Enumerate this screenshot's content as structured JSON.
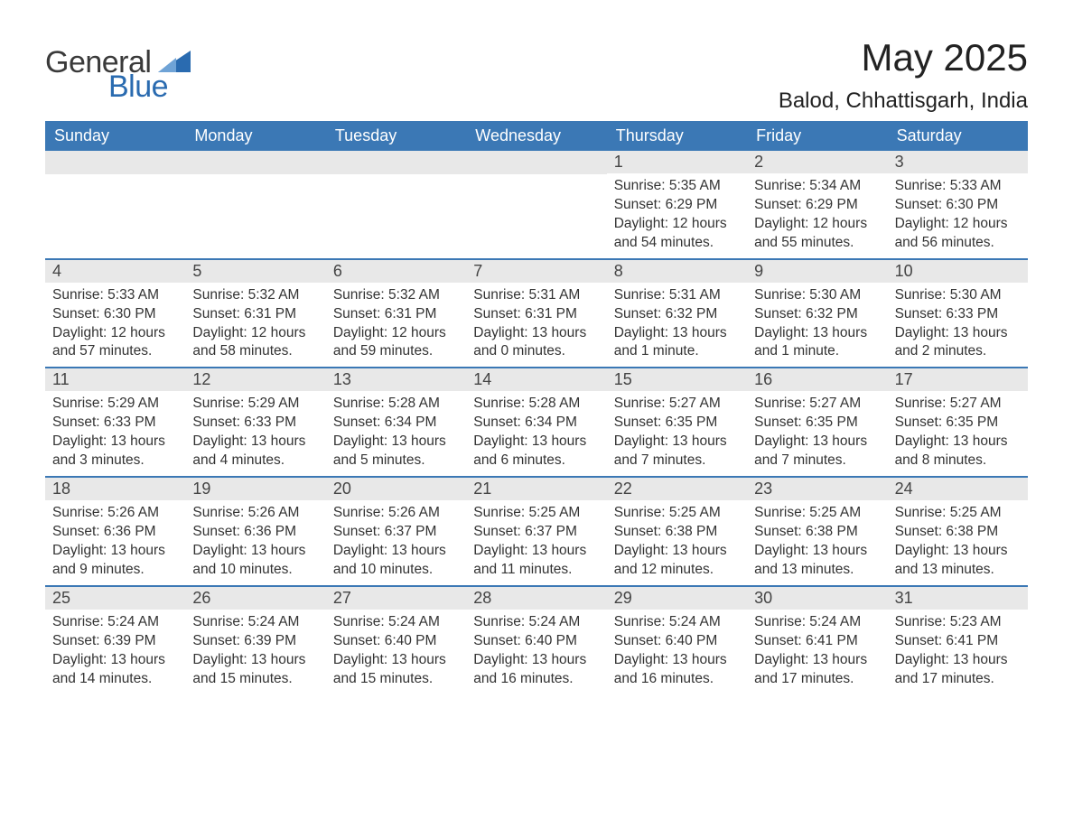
{
  "brand": {
    "general": "General",
    "blue": "Blue"
  },
  "title": "May 2025",
  "location": "Balod, Chhattisgarh, India",
  "colors": {
    "header_bg": "#3b78b5",
    "header_text": "#ffffff",
    "daynum_bg": "#e8e8e8",
    "row_border": "#3b78b5",
    "page_bg": "#ffffff",
    "text": "#333333",
    "logo_blue": "#2a6bb0",
    "logo_gray": "#3a3a3a"
  },
  "days_of_week": [
    "Sunday",
    "Monday",
    "Tuesday",
    "Wednesday",
    "Thursday",
    "Friday",
    "Saturday"
  ],
  "weeks": [
    [
      {
        "blank": true
      },
      {
        "blank": true
      },
      {
        "blank": true
      },
      {
        "blank": true
      },
      {
        "num": "1",
        "sunrise": "Sunrise: 5:35 AM",
        "sunset": "Sunset: 6:29 PM",
        "day1": "Daylight: 12 hours",
        "day2": "and 54 minutes."
      },
      {
        "num": "2",
        "sunrise": "Sunrise: 5:34 AM",
        "sunset": "Sunset: 6:29 PM",
        "day1": "Daylight: 12 hours",
        "day2": "and 55 minutes."
      },
      {
        "num": "3",
        "sunrise": "Sunrise: 5:33 AM",
        "sunset": "Sunset: 6:30 PM",
        "day1": "Daylight: 12 hours",
        "day2": "and 56 minutes."
      }
    ],
    [
      {
        "num": "4",
        "sunrise": "Sunrise: 5:33 AM",
        "sunset": "Sunset: 6:30 PM",
        "day1": "Daylight: 12 hours",
        "day2": "and 57 minutes."
      },
      {
        "num": "5",
        "sunrise": "Sunrise: 5:32 AM",
        "sunset": "Sunset: 6:31 PM",
        "day1": "Daylight: 12 hours",
        "day2": "and 58 minutes."
      },
      {
        "num": "6",
        "sunrise": "Sunrise: 5:32 AM",
        "sunset": "Sunset: 6:31 PM",
        "day1": "Daylight: 12 hours",
        "day2": "and 59 minutes."
      },
      {
        "num": "7",
        "sunrise": "Sunrise: 5:31 AM",
        "sunset": "Sunset: 6:31 PM",
        "day1": "Daylight: 13 hours",
        "day2": "and 0 minutes."
      },
      {
        "num": "8",
        "sunrise": "Sunrise: 5:31 AM",
        "sunset": "Sunset: 6:32 PM",
        "day1": "Daylight: 13 hours",
        "day2": "and 1 minute."
      },
      {
        "num": "9",
        "sunrise": "Sunrise: 5:30 AM",
        "sunset": "Sunset: 6:32 PM",
        "day1": "Daylight: 13 hours",
        "day2": "and 1 minute."
      },
      {
        "num": "10",
        "sunrise": "Sunrise: 5:30 AM",
        "sunset": "Sunset: 6:33 PM",
        "day1": "Daylight: 13 hours",
        "day2": "and 2 minutes."
      }
    ],
    [
      {
        "num": "11",
        "sunrise": "Sunrise: 5:29 AM",
        "sunset": "Sunset: 6:33 PM",
        "day1": "Daylight: 13 hours",
        "day2": "and 3 minutes."
      },
      {
        "num": "12",
        "sunrise": "Sunrise: 5:29 AM",
        "sunset": "Sunset: 6:33 PM",
        "day1": "Daylight: 13 hours",
        "day2": "and 4 minutes."
      },
      {
        "num": "13",
        "sunrise": "Sunrise: 5:28 AM",
        "sunset": "Sunset: 6:34 PM",
        "day1": "Daylight: 13 hours",
        "day2": "and 5 minutes."
      },
      {
        "num": "14",
        "sunrise": "Sunrise: 5:28 AM",
        "sunset": "Sunset: 6:34 PM",
        "day1": "Daylight: 13 hours",
        "day2": "and 6 minutes."
      },
      {
        "num": "15",
        "sunrise": "Sunrise: 5:27 AM",
        "sunset": "Sunset: 6:35 PM",
        "day1": "Daylight: 13 hours",
        "day2": "and 7 minutes."
      },
      {
        "num": "16",
        "sunrise": "Sunrise: 5:27 AM",
        "sunset": "Sunset: 6:35 PM",
        "day1": "Daylight: 13 hours",
        "day2": "and 7 minutes."
      },
      {
        "num": "17",
        "sunrise": "Sunrise: 5:27 AM",
        "sunset": "Sunset: 6:35 PM",
        "day1": "Daylight: 13 hours",
        "day2": "and 8 minutes."
      }
    ],
    [
      {
        "num": "18",
        "sunrise": "Sunrise: 5:26 AM",
        "sunset": "Sunset: 6:36 PM",
        "day1": "Daylight: 13 hours",
        "day2": "and 9 minutes."
      },
      {
        "num": "19",
        "sunrise": "Sunrise: 5:26 AM",
        "sunset": "Sunset: 6:36 PM",
        "day1": "Daylight: 13 hours",
        "day2": "and 10 minutes."
      },
      {
        "num": "20",
        "sunrise": "Sunrise: 5:26 AM",
        "sunset": "Sunset: 6:37 PM",
        "day1": "Daylight: 13 hours",
        "day2": "and 10 minutes."
      },
      {
        "num": "21",
        "sunrise": "Sunrise: 5:25 AM",
        "sunset": "Sunset: 6:37 PM",
        "day1": "Daylight: 13 hours",
        "day2": "and 11 minutes."
      },
      {
        "num": "22",
        "sunrise": "Sunrise: 5:25 AM",
        "sunset": "Sunset: 6:38 PM",
        "day1": "Daylight: 13 hours",
        "day2": "and 12 minutes."
      },
      {
        "num": "23",
        "sunrise": "Sunrise: 5:25 AM",
        "sunset": "Sunset: 6:38 PM",
        "day1": "Daylight: 13 hours",
        "day2": "and 13 minutes."
      },
      {
        "num": "24",
        "sunrise": "Sunrise: 5:25 AM",
        "sunset": "Sunset: 6:38 PM",
        "day1": "Daylight: 13 hours",
        "day2": "and 13 minutes."
      }
    ],
    [
      {
        "num": "25",
        "sunrise": "Sunrise: 5:24 AM",
        "sunset": "Sunset: 6:39 PM",
        "day1": "Daylight: 13 hours",
        "day2": "and 14 minutes."
      },
      {
        "num": "26",
        "sunrise": "Sunrise: 5:24 AM",
        "sunset": "Sunset: 6:39 PM",
        "day1": "Daylight: 13 hours",
        "day2": "and 15 minutes."
      },
      {
        "num": "27",
        "sunrise": "Sunrise: 5:24 AM",
        "sunset": "Sunset: 6:40 PM",
        "day1": "Daylight: 13 hours",
        "day2": "and 15 minutes."
      },
      {
        "num": "28",
        "sunrise": "Sunrise: 5:24 AM",
        "sunset": "Sunset: 6:40 PM",
        "day1": "Daylight: 13 hours",
        "day2": "and 16 minutes."
      },
      {
        "num": "29",
        "sunrise": "Sunrise: 5:24 AM",
        "sunset": "Sunset: 6:40 PM",
        "day1": "Daylight: 13 hours",
        "day2": "and 16 minutes."
      },
      {
        "num": "30",
        "sunrise": "Sunrise: 5:24 AM",
        "sunset": "Sunset: 6:41 PM",
        "day1": "Daylight: 13 hours",
        "day2": "and 17 minutes."
      },
      {
        "num": "31",
        "sunrise": "Sunrise: 5:23 AM",
        "sunset": "Sunset: 6:41 PM",
        "day1": "Daylight: 13 hours",
        "day2": "and 17 minutes."
      }
    ]
  ]
}
